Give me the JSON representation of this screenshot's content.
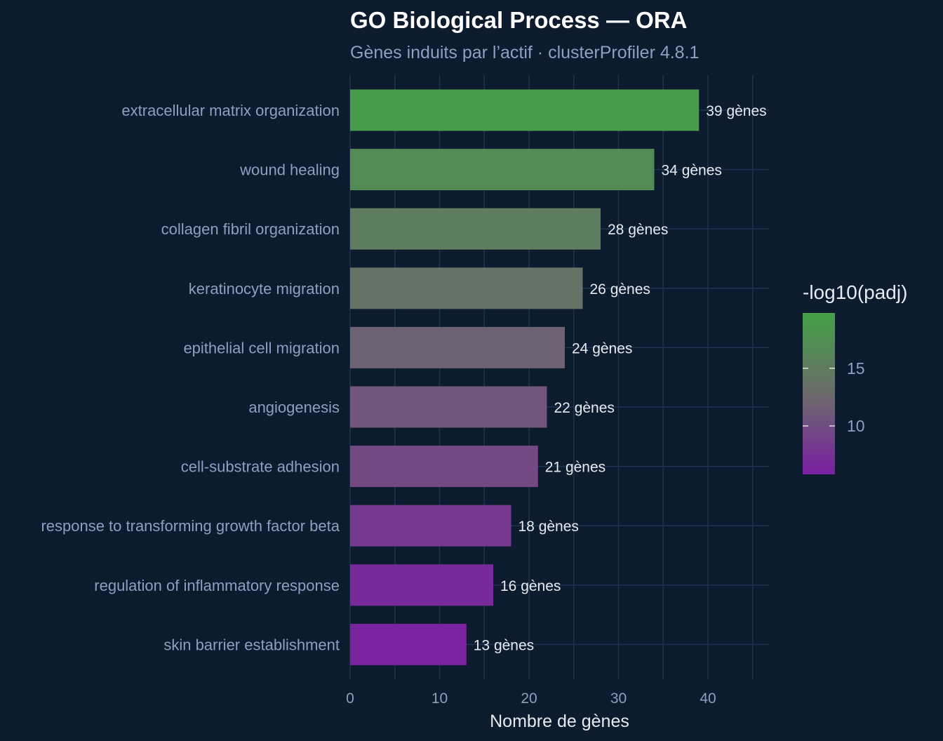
{
  "chart_data": {
    "type": "bar",
    "orientation": "horizontal",
    "title": "GO Biological Process — ORA",
    "subtitle": "Gènes induits par l’actif · clusterProfiler 4.8.1",
    "xlabel": "Nombre de gènes",
    "ylabel": "",
    "xlim": [
      0,
      47
    ],
    "xticks": [
      0,
      10,
      20,
      30,
      40
    ],
    "grid": true,
    "categories": [
      "extracellular matrix organization",
      "wound healing",
      "collagen fibril organization",
      "keratinocyte migration",
      "epithelial cell migration",
      "angiogenesis",
      "cell-substrate adhesion",
      "response to transforming growth factor beta",
      "regulation of inflammatory response",
      "skin barrier establishment"
    ],
    "values": [
      39,
      34,
      28,
      26,
      24,
      22,
      21,
      18,
      16,
      13
    ],
    "data_labels": [
      "39 gènes",
      "34 gènes",
      "28 gènes",
      "26 gènes",
      "24 gènes",
      "22 gènes",
      "21 gènes",
      "18 gènes",
      "16 gènes",
      "13 gènes"
    ],
    "color_values": [
      19.3,
      17.2,
      15.1,
      13.7,
      12.0,
      10.9,
      9.7,
      8.2,
      6.8,
      6.3
    ],
    "color_scale": {
      "title": "-log10(padj)",
      "min": 5.8,
      "max": 19.8,
      "ticks": [
        10,
        15
      ],
      "low_color": "#7a1fa2",
      "mid_color": "#6b6b6b",
      "high_color": "#43a047"
    },
    "legend_position": "right"
  },
  "colors": {
    "background": "#0d1b2e",
    "grid": "#1f3350",
    "axis_text": "#8e9fc0",
    "label_text": "#e6e9f0"
  }
}
